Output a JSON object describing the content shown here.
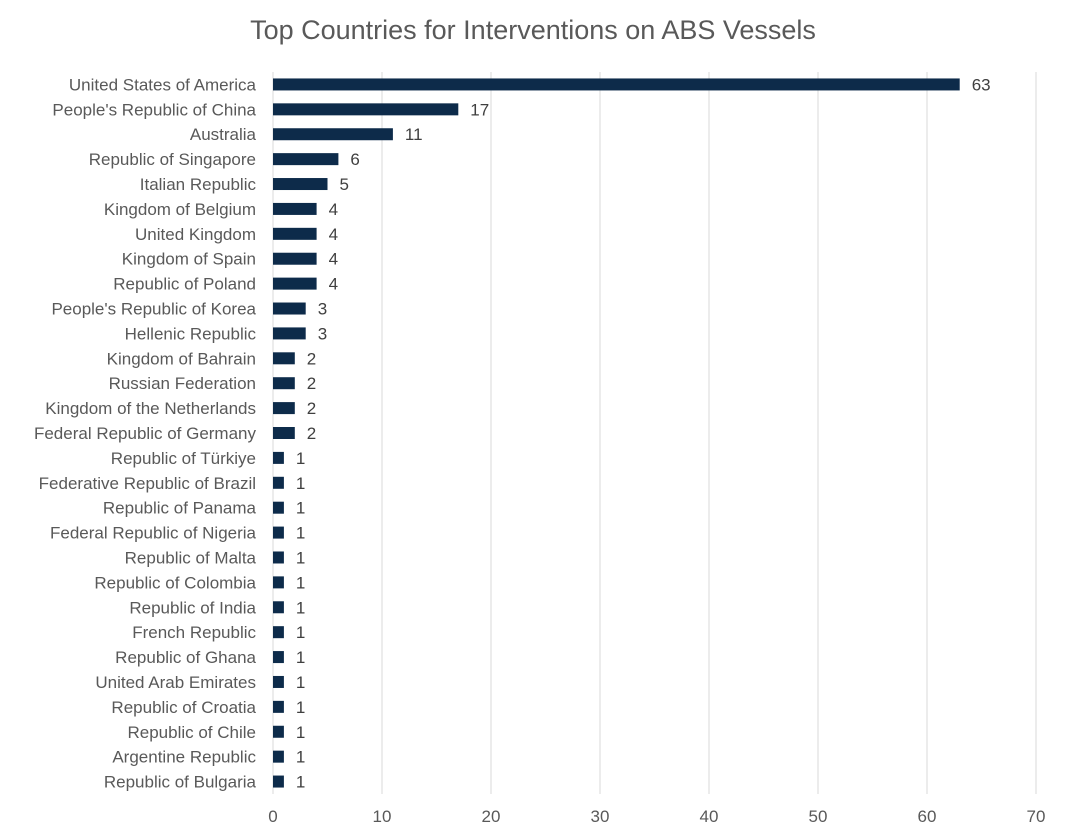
{
  "chart_data": {
    "type": "bar",
    "orientation": "horizontal",
    "title": "Top Countries for Interventions on ABS Vessels",
    "xlabel": "",
    "ylabel": "",
    "xlim": [
      0,
      70
    ],
    "ticks": [
      0,
      10,
      20,
      30,
      40,
      50,
      60,
      70
    ],
    "grid": true,
    "legend": "none",
    "bar_color": "#0d2b4a",
    "categories": [
      "United States of America",
      "People's Republic of China",
      "Australia",
      "Republic of Singapore",
      "Italian Republic",
      "Kingdom of Belgium",
      "United Kingdom",
      "Kingdom of Spain",
      "Republic of Poland",
      "People's Republic of Korea",
      "Hellenic Republic",
      "Kingdom of Bahrain",
      "Russian Federation",
      "Kingdom of the Netherlands",
      "Federal Republic of Germany",
      "Republic of Türkiye",
      "Federative Republic of Brazil",
      "Republic of Panama",
      "Federal Republic of Nigeria",
      "Republic of Malta",
      "Republic of Colombia",
      "Republic of India",
      "French Republic",
      "Republic of Ghana",
      "United Arab Emirates",
      "Republic of Croatia",
      "Republic of Chile",
      "Argentine Republic",
      "Republic of Bulgaria"
    ],
    "values": [
      63,
      17,
      11,
      6,
      5,
      4,
      4,
      4,
      4,
      3,
      3,
      2,
      2,
      2,
      2,
      1,
      1,
      1,
      1,
      1,
      1,
      1,
      1,
      1,
      1,
      1,
      1,
      1,
      1
    ]
  }
}
